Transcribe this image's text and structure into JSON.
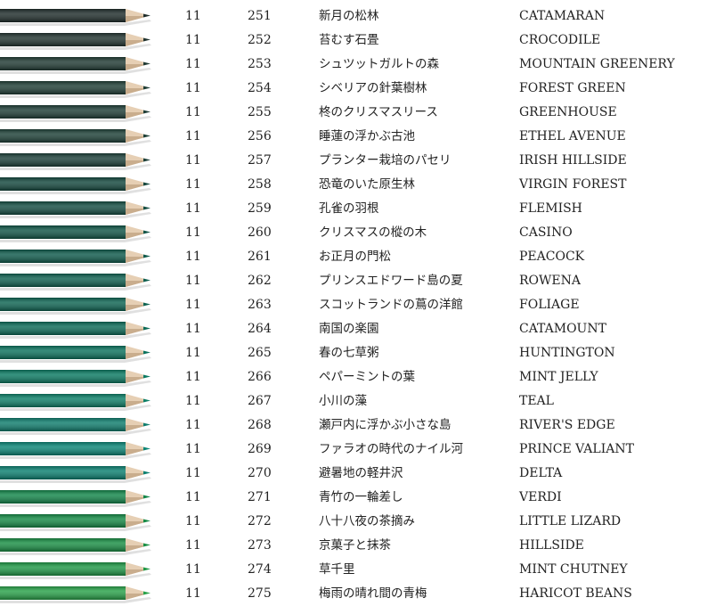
{
  "pencils": [
    {
      "set": "11",
      "number": "251",
      "name_jp": "新月の松林",
      "name_en": "CATAMARAN",
      "color": "#1f2d2b"
    },
    {
      "set": "11",
      "number": "252",
      "name_jp": "苔むす石畳",
      "name_en": "CROCODILE",
      "color": "#21332f"
    },
    {
      "set": "11",
      "number": "253",
      "name_jp": "シュツットガルトの森",
      "name_en": "MOUNTAIN GREENERY",
      "color": "#203a33"
    },
    {
      "set": "11",
      "number": "254",
      "name_jp": "シベリアの針葉樹林",
      "name_en": "FOREST GREEN",
      "color": "#1f3d35"
    },
    {
      "set": "11",
      "number": "255",
      "name_jp": "柊のクリスマスリース",
      "name_en": "GREENHOUSE",
      "color": "#1e3d36"
    },
    {
      "set": "11",
      "number": "256",
      "name_jp": "睡蓮の浮かぶ古池",
      "name_en": "ETHEL AVENUE",
      "color": "#1d4037"
    },
    {
      "set": "11",
      "number": "257",
      "name_jp": "プランター栽培のパセリ",
      "name_en": "IRISH HILLSIDE",
      "color": "#1c3f38"
    },
    {
      "set": "11",
      "number": "258",
      "name_jp": "恐竜のいた原生林",
      "name_en": "VIRGIN FOREST",
      "color": "#13473d"
    },
    {
      "set": "11",
      "number": "259",
      "name_jp": "孔雀の羽根",
      "name_en": "FLEMISH",
      "color": "#144d42"
    },
    {
      "set": "11",
      "number": "260",
      "name_jp": "クリスマスの樅の木",
      "name_en": "CASINO",
      "color": "#0f5446"
    },
    {
      "set": "11",
      "number": "261",
      "name_jp": "お正月の門松",
      "name_en": "PEACOCK",
      "color": "#0e5a4b"
    },
    {
      "set": "11",
      "number": "262",
      "name_jp": "プリンスエドワード島の夏",
      "name_en": "ROWENA",
      "color": "#0e5f4f"
    },
    {
      "set": "11",
      "number": "263",
      "name_jp": "スコットランドの蔦の洋館",
      "name_en": "FOLIAGE",
      "color": "#0d6452"
    },
    {
      "set": "11",
      "number": "264",
      "name_jp": "南国の楽園",
      "name_en": "CATAMOUNT",
      "color": "#0b6a57"
    },
    {
      "set": "11",
      "number": "265",
      "name_jp": "春の七草粥",
      "name_en": "HUNTINGTON",
      "color": "#0a725d"
    },
    {
      "set": "11",
      "number": "266",
      "name_jp": "ペパーミントの葉",
      "name_en": "MINT JELLY",
      "color": "#0a7a62"
    },
    {
      "set": "11",
      "number": "267",
      "name_jp": "小川の藻",
      "name_en": "TEAL",
      "color": "#0c7f67"
    },
    {
      "set": "11",
      "number": "268",
      "name_jp": "瀬戸内に浮かぶ小さな島",
      "name_en": "RIVER'S EDGE",
      "color": "#0e7d6d"
    },
    {
      "set": "11",
      "number": "269",
      "name_jp": "ファラオの時代のナイル河",
      "name_en": "PRINCE VALIANT",
      "color": "#0a8576"
    },
    {
      "set": "11",
      "number": "270",
      "name_jp": "避暑地の軽井沢",
      "name_en": "DELTA",
      "color": "#0a8070"
    },
    {
      "set": "11",
      "number": "271",
      "name_jp": "青竹の一輪差し",
      "name_en": "VERDI",
      "color": "#12864a"
    },
    {
      "set": "11",
      "number": "272",
      "name_jp": "八十八夜の茶摘み",
      "name_en": "LITTLE LIZARD",
      "color": "#148a45"
    },
    {
      "set": "11",
      "number": "273",
      "name_jp": "京菓子と抹茶",
      "name_en": "HILLSIDE",
      "color": "#198f44"
    },
    {
      "set": "11",
      "number": "274",
      "name_jp": "草千里",
      "name_en": "MINT CHUTNEY",
      "color": "#1f9846"
    },
    {
      "set": "11",
      "number": "275",
      "name_jp": "梅雨の晴れ間の青梅",
      "name_en": "HARICOT BEANS",
      "color": "#28a249"
    }
  ]
}
